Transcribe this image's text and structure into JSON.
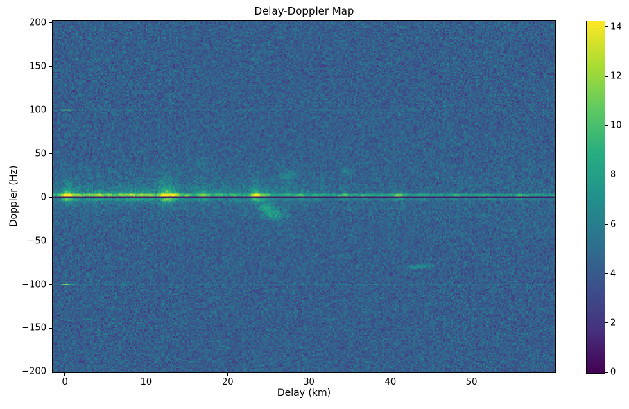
{
  "chart_data": {
    "type": "heatmap",
    "title": "Delay-Doppler Map",
    "xlabel": "Delay (km)",
    "ylabel": "Doppler (Hz)",
    "xlim": [
      -1.5,
      60.3
    ],
    "ylim": [
      -200.4,
      202.0
    ],
    "xticks": [
      {
        "value": 0,
        "label": "0"
      },
      {
        "value": 10,
        "label": "10"
      },
      {
        "value": 20,
        "label": "20"
      },
      {
        "value": 30,
        "label": "30"
      },
      {
        "value": 40,
        "label": "40"
      },
      {
        "value": 50,
        "label": "50"
      }
    ],
    "yticks": [
      {
        "value": 200,
        "label": "200"
      },
      {
        "value": 150,
        "label": "150"
      },
      {
        "value": 100,
        "label": "100"
      },
      {
        "value": 50,
        "label": "50"
      },
      {
        "value": 0,
        "label": "0"
      },
      {
        "value": -50,
        "label": "−50"
      },
      {
        "value": -100,
        "label": "−100"
      },
      {
        "value": -150,
        "label": "−150"
      },
      {
        "value": -200,
        "label": "−200"
      }
    ],
    "colorbar": {
      "vmin": 0,
      "vmax": 14.25,
      "ticks": [
        {
          "value": 0,
          "label": "0"
        },
        {
          "value": 2,
          "label": "2"
        },
        {
          "value": 4,
          "label": "4"
        },
        {
          "value": 6,
          "label": "6"
        },
        {
          "value": 8,
          "label": "8"
        },
        {
          "value": 10,
          "label": "10"
        },
        {
          "value": 12,
          "label": "12"
        },
        {
          "value": 14,
          "label": "14"
        }
      ]
    },
    "colormap": {
      "name": "viridis",
      "stops": [
        [
          0.0,
          "#440154"
        ],
        [
          0.125,
          "#46327e"
        ],
        [
          0.25,
          "#3b528b"
        ],
        [
          0.375,
          "#2c728e"
        ],
        [
          0.5,
          "#21918c"
        ],
        [
          0.625,
          "#27ad81"
        ],
        [
          0.75,
          "#5ec962"
        ],
        [
          0.875,
          "#aadc32"
        ],
        [
          1.0,
          "#fde725"
        ]
      ]
    },
    "grid": {
      "ncols": 363,
      "nrows": 254
    },
    "noise": {
      "mean": 4.25,
      "std": 0.85,
      "seed": 1337,
      "near_line_glow": 0.45,
      "glow_tau_hz": 30
    },
    "zero_doppler": {
      "bright_line": {
        "doppler_range": [
          1.0,
          3.3
        ],
        "base": 7.4,
        "decay_amp": 1.6,
        "decay_km": 28,
        "jitter": 0.7
      },
      "dark_line": {
        "doppler_range": [
          -0.8,
          1.0
        ],
        "value": 0.8,
        "jitter": 0.5
      },
      "below_glow": {
        "doppler_range": [
          -4.5,
          -0.8
        ],
        "base": 5.4,
        "blob_gain": 0.6,
        "jitter": 0.8
      }
    },
    "diffuse": {
      "above": {
        "peak": 1.7,
        "tau_hz": 11,
        "start_hz": 2.5,
        "max_hz": 42,
        "delay_fade_km": 30
      },
      "below": {
        "peak": 1.0,
        "tau_hz": 7,
        "start_hz": 2.5,
        "max_hz": 25,
        "delay_fade_km": 30
      }
    },
    "line_blobs": [
      {
        "delay": 0.3,
        "amp": 6.5,
        "sigma": 0.5,
        "up": 18,
        "down": 6
      },
      {
        "delay": 1.6,
        "amp": 3.0,
        "sigma": 0.4,
        "up": 8,
        "down": 4
      },
      {
        "delay": 3.0,
        "amp": 2.5,
        "sigma": 0.4,
        "up": 8,
        "down": 4
      },
      {
        "delay": 4.2,
        "amp": 3.5,
        "sigma": 0.45,
        "up": 10,
        "down": 5
      },
      {
        "delay": 5.5,
        "amp": 2.5,
        "sigma": 0.4,
        "up": 8,
        "down": 4
      },
      {
        "delay": 6.8,
        "amp": 2.8,
        "sigma": 0.4,
        "up": 9,
        "down": 4
      },
      {
        "delay": 8.1,
        "amp": 3.5,
        "sigma": 0.5,
        "up": 12,
        "down": 5
      },
      {
        "delay": 9.3,
        "amp": 2.6,
        "sigma": 0.4,
        "up": 8,
        "down": 4
      },
      {
        "delay": 10.4,
        "amp": 3.0,
        "sigma": 0.45,
        "up": 9,
        "down": 4
      },
      {
        "delay": 12.4,
        "amp": 7.0,
        "sigma": 0.65,
        "up": 22,
        "down": 9
      },
      {
        "delay": 13.6,
        "amp": 4.0,
        "sigma": 0.4,
        "up": 12,
        "down": 5
      },
      {
        "delay": 15.0,
        "amp": 2.2,
        "sigma": 0.4,
        "up": 7,
        "down": 3
      },
      {
        "delay": 17.1,
        "amp": 3.2,
        "sigma": 0.5,
        "up": 16,
        "down": 5
      },
      {
        "delay": 19.0,
        "amp": 2.0,
        "sigma": 0.4,
        "up": 6,
        "down": 3
      },
      {
        "delay": 21.0,
        "amp": 1.8,
        "sigma": 0.4,
        "up": 6,
        "down": 3
      },
      {
        "delay": 23.5,
        "amp": 6.0,
        "sigma": 0.5,
        "up": 17,
        "down": 7
      },
      {
        "delay": 24.8,
        "amp": 2.2,
        "sigma": 0.4,
        "up": 7,
        "down": 8
      },
      {
        "delay": 27.5,
        "amp": 1.6,
        "sigma": 0.5,
        "up": 25,
        "down": 3
      },
      {
        "delay": 29.0,
        "amp": 1.5,
        "sigma": 0.4,
        "up": 5,
        "down": 3
      },
      {
        "delay": 31.0,
        "amp": 1.4,
        "sigma": 0.4,
        "up": 5,
        "down": 3
      },
      {
        "delay": 34.5,
        "amp": 1.8,
        "sigma": 0.45,
        "up": 8,
        "down": 3
      },
      {
        "delay": 37.0,
        "amp": 1.2,
        "sigma": 0.4,
        "up": 4,
        "down": 2
      },
      {
        "delay": 41.0,
        "amp": 3.0,
        "sigma": 0.5,
        "up": 7,
        "down": 3
      },
      {
        "delay": 44.0,
        "amp": 1.2,
        "sigma": 0.4,
        "up": 4,
        "down": 2
      },
      {
        "delay": 48.0,
        "amp": 1.4,
        "sigma": 0.4,
        "up": 4,
        "down": 2
      },
      {
        "delay": 52.0,
        "amp": 1.1,
        "sigma": 0.4,
        "up": 3,
        "down": 2
      },
      {
        "delay": 56.0,
        "amp": 1.3,
        "sigma": 0.4,
        "up": 4,
        "down": 2
      }
    ],
    "harmonic_lines": [
      {
        "doppler": 100,
        "half_width_hz": 1.2,
        "boost": 0.9,
        "dot_delay": 0.2,
        "dot_sigma": 0.5,
        "dot_amp": 4.8
      },
      {
        "doppler": -100,
        "half_width_hz": 1.2,
        "boost": 0.9,
        "dot_delay": 0.2,
        "dot_sigma": 0.5,
        "dot_amp": 5.2
      }
    ],
    "spots": [
      {
        "delay": 25.7,
        "doppler": -19,
        "sx": 0.9,
        "sy": 5.0,
        "amp": 3.4
      },
      {
        "delay": 24.7,
        "doppler": -12,
        "sx": 0.5,
        "sy": 3.0,
        "amp": 2.6
      },
      {
        "delay": 27.6,
        "doppler": 25,
        "sx": 0.9,
        "sy": 4.0,
        "amp": 1.6
      },
      {
        "delay": 34.6,
        "doppler": 30,
        "sx": 0.5,
        "sy": 2.5,
        "amp": 1.8
      },
      {
        "delay": 16.9,
        "doppler": 40,
        "sx": 0.4,
        "sy": 3.0,
        "amp": 1.4
      },
      {
        "delay": 42.8,
        "doppler": -80,
        "sx": 1.1,
        "sy": 1.6,
        "amp": 2.4
      },
      {
        "delay": 44.3,
        "doppler": -78,
        "sx": 0.7,
        "sy": 1.4,
        "amp": 2.0
      }
    ]
  }
}
